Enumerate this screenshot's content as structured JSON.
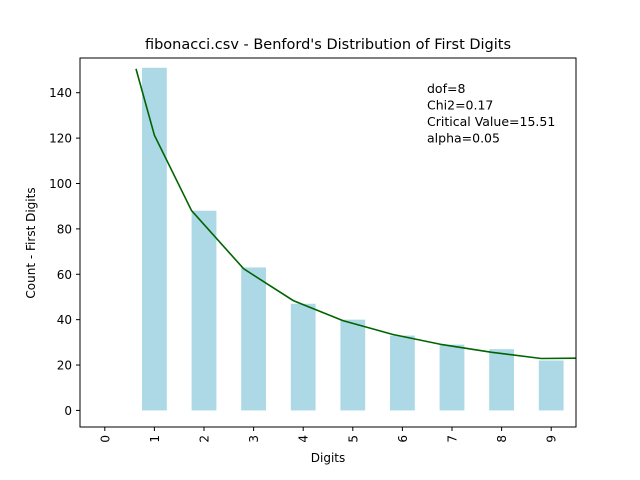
{
  "chart_data": {
    "type": "bar",
    "title": "fibonacci.csv - Benford's Distribution of First Digits",
    "xlabel": "Digits",
    "ylabel": "Count - First Digits",
    "categories": [
      "0",
      "1",
      "2",
      "3",
      "4",
      "5",
      "6",
      "7",
      "8",
      "9"
    ],
    "ylim": [
      -7.3,
      155.3
    ],
    "yticks": [
      0,
      20,
      40,
      60,
      80,
      100,
      120,
      140
    ],
    "series": [
      {
        "kind": "bar",
        "color": "#add8e6",
        "values": [
          0,
          151,
          88,
          63,
          47,
          40,
          33,
          29,
          27,
          22
        ]
      },
      {
        "kind": "line",
        "color": "#006400",
        "points": [
          {
            "x": 0.63,
            "y": 150.5
          },
          {
            "x": 1,
            "y": 121.3
          },
          {
            "x": 1.75,
            "y": 88
          },
          {
            "x": 2.8,
            "y": 62.4
          },
          {
            "x": 3.8,
            "y": 48.4
          },
          {
            "x": 4.8,
            "y": 39.6
          },
          {
            "x": 5.8,
            "y": 33.5
          },
          {
            "x": 6.8,
            "y": 29.0
          },
          {
            "x": 7.8,
            "y": 25.6
          },
          {
            "x": 8.8,
            "y": 22.9
          },
          {
            "x": 9.5,
            "y": 23.0
          }
        ]
      }
    ],
    "annotations": [
      "dof=8",
      "Chi2=0.17",
      "Critical Value=15.51",
      "alpha=0.05"
    ],
    "legend": "none",
    "grid": false
  }
}
